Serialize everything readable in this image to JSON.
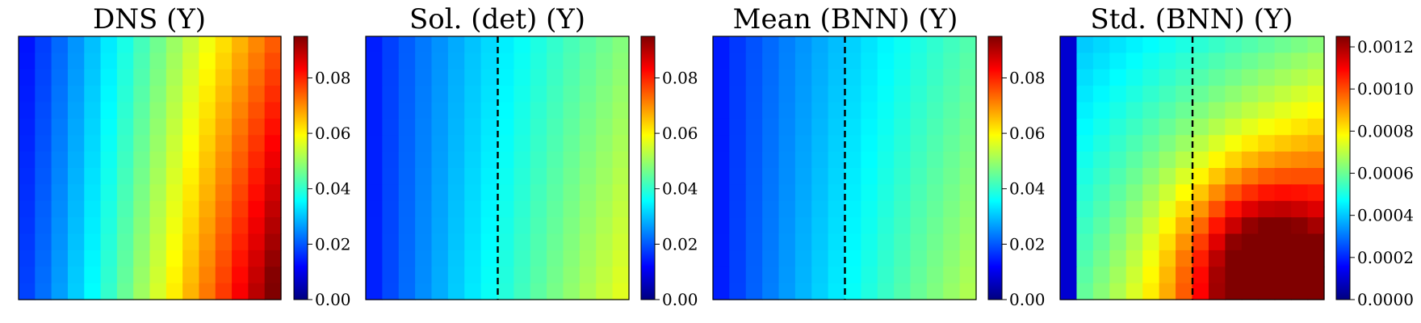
{
  "figure": {
    "colormap": "jet",
    "colormap_stops": [
      "#00007f",
      "#0000ff",
      "#007fff",
      "#00ffff",
      "#7fff7f",
      "#ffff00",
      "#ff7f00",
      "#ff0000",
      "#7f0000"
    ]
  },
  "chart_data": [
    {
      "type": "heatmap",
      "title": "DNS (Y)",
      "grid": [
        16,
        16
      ],
      "dashed_divider": false,
      "colorbar": {
        "range": [
          0.0,
          0.095
        ],
        "ticks": [
          0.0,
          0.02,
          0.04,
          0.06,
          0.08
        ],
        "tick_labels": [
          "0.00",
          "0.02",
          "0.04",
          "0.06",
          "0.08"
        ]
      }
    },
    {
      "type": "heatmap",
      "title": "Sol. (det) (Y)",
      "grid": [
        16,
        16
      ],
      "dashed_divider": true,
      "colorbar": {
        "range": [
          0.0,
          0.095
        ],
        "ticks": [
          0.0,
          0.02,
          0.04,
          0.06,
          0.08
        ],
        "tick_labels": [
          "0.00",
          "0.02",
          "0.04",
          "0.06",
          "0.08"
        ]
      }
    },
    {
      "type": "heatmap",
      "title": "Mean (BNN) (Y)",
      "grid": [
        16,
        16
      ],
      "dashed_divider": true,
      "colorbar": {
        "range": [
          0.0,
          0.095
        ],
        "ticks": [
          0.0,
          0.02,
          0.04,
          0.06,
          0.08
        ],
        "tick_labels": [
          "0.00",
          "0.02",
          "0.04",
          "0.06",
          "0.08"
        ]
      }
    },
    {
      "type": "heatmap",
      "title": "Std. (BNN) (Y)",
      "grid": [
        16,
        16
      ],
      "dashed_divider": true,
      "colorbar": {
        "range": [
          0.0,
          0.00125
        ],
        "ticks": [
          0.0,
          0.0002,
          0.0004,
          0.0006,
          0.0008,
          0.001,
          0.0012
        ],
        "tick_labels": [
          "0.0000",
          "0.0002",
          "0.0004",
          "0.0006",
          "0.0008",
          "0.0010",
          "0.0012"
        ]
      }
    }
  ]
}
